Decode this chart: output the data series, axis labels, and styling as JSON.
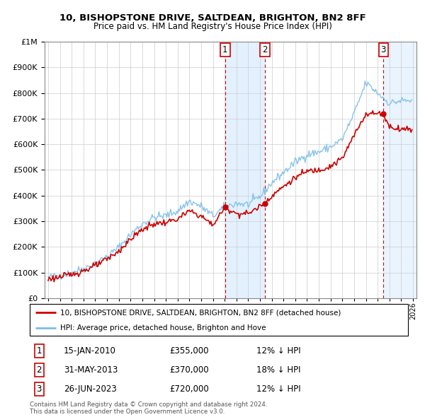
{
  "title1": "10, BISHOPSTONE DRIVE, SALTDEAN, BRIGHTON, BN2 8FF",
  "title2": "Price paid vs. HM Land Registry's House Price Index (HPI)",
  "legend_line1": "10, BISHOPSTONE DRIVE, SALTDEAN, BRIGHTON, BN2 8FF (detached house)",
  "legend_line2": "HPI: Average price, detached house, Brighton and Hove",
  "footer1": "Contains HM Land Registry data © Crown copyright and database right 2024.",
  "footer2": "This data is licensed under the Open Government Licence v3.0.",
  "transactions": [
    {
      "num": 1,
      "date": "15-JAN-2010",
      "date_val": 2010.04,
      "price": 355000,
      "hpi_diff": "12% ↓ HPI"
    },
    {
      "num": 2,
      "date": "31-MAY-2013",
      "date_val": 2013.41,
      "price": 370000,
      "hpi_diff": "18% ↓ HPI"
    },
    {
      "num": 3,
      "date": "26-JUN-2023",
      "date_val": 2023.49,
      "price": 720000,
      "hpi_diff": "12% ↓ HPI"
    }
  ],
  "hpi_color": "#7bbde8",
  "price_color": "#cc0000",
  "vline_color": "#cc0000",
  "shade_color": "#ddeeff",
  "hatch_color": "#ccddee",
  "ylim": [
    0,
    1000000
  ],
  "yticks": [
    0,
    100000,
    200000,
    300000,
    400000,
    500000,
    600000,
    700000,
    800000,
    900000,
    1000000
  ],
  "xlim_start": 1994.7,
  "xlim_end": 2026.3
}
